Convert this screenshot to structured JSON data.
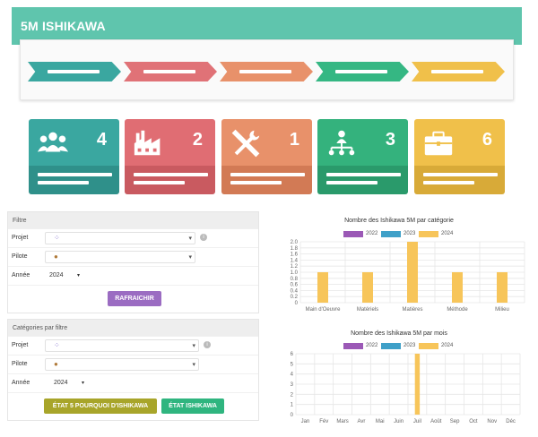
{
  "header": {
    "title": "5M ISHIKAWA"
  },
  "colors": {
    "header": "#5fc5ad",
    "chevrons": [
      "#3aa7a0",
      "#e07277",
      "#e8916a",
      "#35b783",
      "#f0c04a"
    ]
  },
  "cards": [
    {
      "count": "4",
      "icon": "people-icon",
      "top_color": "#3aa7a0",
      "bottom_color": "#2f908a"
    },
    {
      "count": "2",
      "icon": "factory-icon",
      "top_color": "#e06d73",
      "bottom_color": "#c95a60"
    },
    {
      "count": "1",
      "icon": "tools-icon",
      "top_color": "#e8916a",
      "bottom_color": "#d27a55"
    },
    {
      "count": "3",
      "icon": "network-icon",
      "top_color": "#34b27d",
      "bottom_color": "#2a9a6b"
    },
    {
      "count": "6",
      "icon": "briefcase-icon",
      "top_color": "#f0c04a",
      "bottom_color": "#d8aa38"
    }
  ],
  "filter": {
    "title": "Filtre",
    "projet_label": "Projet",
    "pilote_label": "Pilote",
    "annee_label": "Année",
    "annee_value": "2024",
    "refresh_label": "RAFRAICHIR"
  },
  "category_filter": {
    "title": "Catégories par filtre",
    "projet_label": "Projet",
    "pilote_label": "Pilote",
    "annee_label": "Année",
    "annee_value": "2024",
    "btn_pourquoi": "ÉTAT 5 POURQUOI D'ISHIKAWA",
    "btn_etat": "ÉTAT ISHIKAWA"
  },
  "chart_data": [
    {
      "type": "bar",
      "title": "Nombre des Ishikawa 5M par catégorie",
      "categories": [
        "Main d'Oeuvre",
        "Matériels",
        "Matières",
        "Méthode",
        "Milieu"
      ],
      "series": [
        {
          "name": "2022",
          "color": "#9b59b6",
          "values": [
            0,
            0,
            0,
            0,
            0
          ]
        },
        {
          "name": "2023",
          "color": "#3fa0c8",
          "values": [
            0,
            0,
            0,
            0,
            0
          ]
        },
        {
          "name": "2024",
          "color": "#f7c55a",
          "values": [
            1,
            1,
            2,
            1,
            1
          ]
        }
      ],
      "ylim": [
        0,
        2
      ],
      "yticks": [
        "0",
        "0.2",
        "0.4",
        "0.6",
        "0.8",
        "1.0",
        "1.2",
        "1.4",
        "1.6",
        "1.8",
        "2.0"
      ],
      "legend": "top-center",
      "grid": true
    },
    {
      "type": "bar",
      "title": "Nombre des Ishikawa 5M par mois",
      "categories": [
        "Jan",
        "Fév",
        "Mars",
        "Avr",
        "Mai",
        "Juin",
        "Juil",
        "Août",
        "Sep",
        "Oct",
        "Nov",
        "Déc"
      ],
      "series": [
        {
          "name": "2022",
          "color": "#9b59b6",
          "values": [
            0,
            0,
            0,
            0,
            0,
            0,
            0,
            0,
            0,
            0,
            0,
            0
          ]
        },
        {
          "name": "2023",
          "color": "#3fa0c8",
          "values": [
            0,
            0,
            0,
            0,
            0,
            0,
            0,
            0,
            0,
            0,
            0,
            0
          ]
        },
        {
          "name": "2024",
          "color": "#f7c55a",
          "values": [
            0,
            0,
            0,
            0,
            0,
            0,
            6,
            0,
            0,
            0,
            0,
            0
          ]
        }
      ],
      "ylim": [
        0,
        6
      ],
      "yticks": [
        "0",
        "1",
        "2",
        "3",
        "4",
        "5",
        "6"
      ],
      "legend": "top-center",
      "grid": true
    }
  ]
}
